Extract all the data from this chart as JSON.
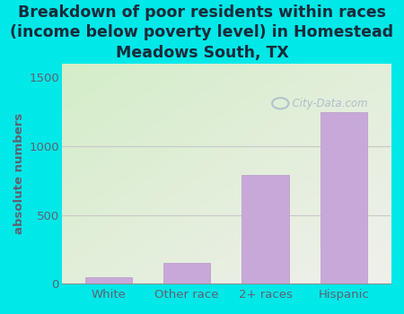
{
  "categories": [
    "White",
    "Other race",
    "2+ races",
    "Hispanic"
  ],
  "values": [
    50,
    150,
    790,
    1250
  ],
  "bar_color": "#c8a8d8",
  "bar_edgecolor": "#b898c8",
  "background_color": "#00e8e8",
  "title_line1": "Breakdown of poor residents within races",
  "title_line2": "(income below poverty level) in Homestead",
  "title_line3": "Meadows South, TX",
  "ylabel": "absolute numbers",
  "ylim": [
    0,
    1600
  ],
  "yticks": [
    0,
    500,
    1000,
    1500
  ],
  "title_fontsize": 12.5,
  "ylabel_fontsize": 9.5,
  "tick_fontsize": 9.5,
  "title_color": "#1a2a3a",
  "axis_label_color": "#606070",
  "watermark_text": "City-Data.com",
  "watermark_color": "#a8b8c8",
  "grid_color": "#c8c8c8",
  "grid_yticks": [
    500,
    1000
  ]
}
